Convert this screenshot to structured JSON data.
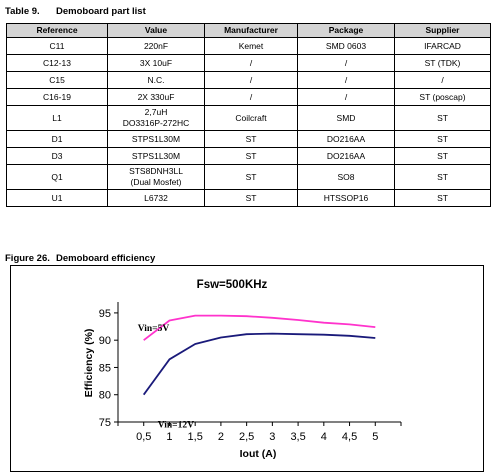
{
  "table": {
    "number": "Table 9.",
    "title": "Demoboard part list",
    "headers": [
      "Reference",
      "Value",
      "Manufacturer",
      "Package",
      "Supplier"
    ],
    "rows": [
      {
        "reference": "C11",
        "value": [
          "220nF"
        ],
        "manufacturer": "Kemet",
        "package": "SMD 0603",
        "supplier": "IFARCAD"
      },
      {
        "reference": "C12-13",
        "value": [
          "3X 10uF"
        ],
        "manufacturer": "/",
        "package": "/",
        "supplier": "ST (TDK)"
      },
      {
        "reference": "C15",
        "value": [
          "N.C."
        ],
        "manufacturer": "/",
        "package": "/",
        "supplier": "/"
      },
      {
        "reference": "C16-19",
        "value": [
          "2X 330uF"
        ],
        "manufacturer": "/",
        "package": "/",
        "supplier": "ST (poscap)"
      },
      {
        "reference": "L1",
        "value": [
          "2,7uH",
          "DO3316P-272HC"
        ],
        "manufacturer": "Coilcraft",
        "package": "SMD",
        "supplier": "ST"
      },
      {
        "reference": "D1",
        "value": [
          "STPS1L30M"
        ],
        "manufacturer": "ST",
        "package": "DO216AA",
        "supplier": "ST"
      },
      {
        "reference": "D3",
        "value": [
          "STPS1L30M"
        ],
        "manufacturer": "ST",
        "package": "DO216AA",
        "supplier": "ST"
      },
      {
        "reference": "Q1",
        "value": [
          "STS8DNH3LL",
          "(Dual Mosfet)"
        ],
        "manufacturer": "ST",
        "package": "SO8",
        "supplier": "ST"
      },
      {
        "reference": "U1",
        "value": [
          "L6732"
        ],
        "manufacturer": "ST",
        "package": "HTSSOP16",
        "supplier": "ST"
      }
    ]
  },
  "figure": {
    "number": "Figure 26.",
    "title": "Demoboard efficiency"
  },
  "chart_data": {
    "type": "line",
    "title": "Fsw=500KHz",
    "xlabel": "Iout (A)",
    "ylabel": "Efficiency (%)",
    "x": [
      0.5,
      1,
      1.5,
      2,
      2.5,
      3,
      3.5,
      4,
      4.5,
      5
    ],
    "x_tick_labels": [
      "0,5",
      "1",
      "1,5",
      "2",
      "2,5",
      "3",
      "3,5",
      "4",
      "4,5",
      "5"
    ],
    "y_ticks": [
      75,
      80,
      85,
      90,
      95
    ],
    "xlim": [
      0,
      5.5
    ],
    "ylim": [
      75,
      97
    ],
    "grid": false,
    "series": [
      {
        "name": "Vin=5V",
        "color": "#ff33cc",
        "values": [
          90.0,
          93.6,
          94.5,
          94.5,
          94.4,
          94.1,
          93.7,
          93.2,
          92.9,
          92.4
        ]
      },
      {
        "name": "Vin=12V",
        "color": "#1a1a7a",
        "values": [
          80.0,
          86.5,
          89.3,
          90.5,
          91.1,
          91.2,
          91.1,
          91.0,
          90.8,
          90.4
        ]
      }
    ]
  }
}
